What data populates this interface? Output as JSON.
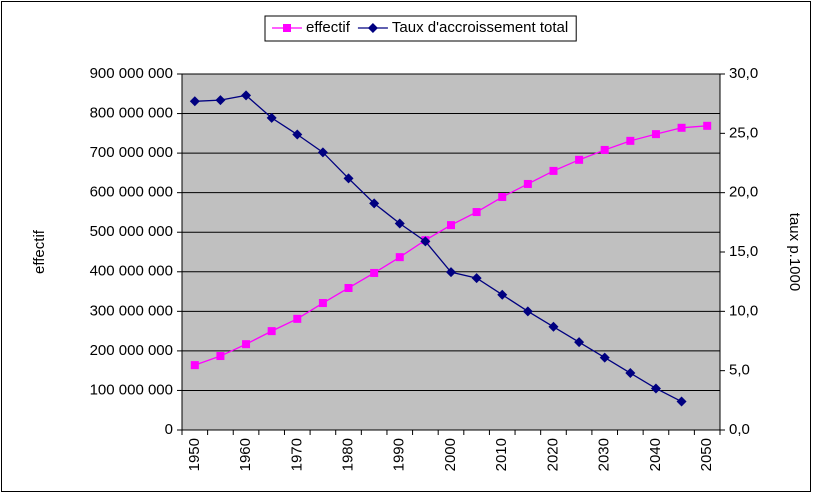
{
  "chart_data": {
    "type": "line",
    "legend": "top",
    "categories": [
      "1950",
      null,
      "1960",
      null,
      "1970",
      null,
      "1980",
      null,
      "1990",
      null,
      "2000",
      null,
      "2010",
      null,
      "2020",
      null,
      "2030",
      null,
      "2040",
      null,
      "2050"
    ],
    "series": [
      {
        "name": "effectif",
        "color": "#ff00ff",
        "marker": "square",
        "values": [
          164000000,
          187000000,
          217000000,
          250000000,
          281000000,
          321000000,
          359000000,
          397000000,
          437000000,
          480000000,
          518000000,
          551000000,
          589000000,
          622000000,
          655000000,
          683000000,
          708000000,
          731000000,
          748000000,
          764000000,
          769000000
        ]
      },
      {
        "name": "Taux d'accroissement total",
        "color": "#000080",
        "marker": "diamond",
        "axis": "y2",
        "values": [
          27.7,
          27.8,
          28.2,
          26.3,
          24.9,
          23.4,
          21.2,
          19.1,
          17.4,
          15.9,
          13.3,
          12.8,
          11.4,
          10.0,
          8.7,
          7.4,
          6.1,
          4.8,
          3.5,
          2.4,
          null
        ]
      }
    ],
    "ylabel": "effectif",
    "y2label": "taux p.1000",
    "ylim": [
      0,
      900000000
    ],
    "yticks": [
      0,
      {
        "value": 100000000,
        "label": "100 000 000"
      },
      {
        "value": 200000000,
        "label": "200 000 000"
      },
      {
        "value": 300000000,
        "label": "300 000 000"
      },
      {
        "value": 400000000,
        "label": "400 000 000"
      },
      {
        "value": 500000000,
        "label": "500 000 000"
      },
      {
        "value": 600000000,
        "label": "600 000 000"
      },
      {
        "value": 700000000,
        "label": "700 000 000"
      },
      {
        "value": 800000000,
        "label": "800 000 000"
      },
      {
        "value": 900000000,
        "label": "900 000 000"
      }
    ],
    "y2lim": [
      0,
      30
    ],
    "y2ticks": [
      {
        "value": 0,
        "label": "0,0"
      },
      {
        "value": 5,
        "label": "5,0"
      },
      {
        "value": 10,
        "label": "10,0"
      },
      {
        "value": 15,
        "label": "15,0"
      },
      {
        "value": 20,
        "label": "20,0"
      },
      {
        "value": 25,
        "label": "25,0"
      },
      {
        "value": 30,
        "label": "30,0"
      }
    ],
    "grid": true,
    "plot_background": "#c0c0c0"
  }
}
